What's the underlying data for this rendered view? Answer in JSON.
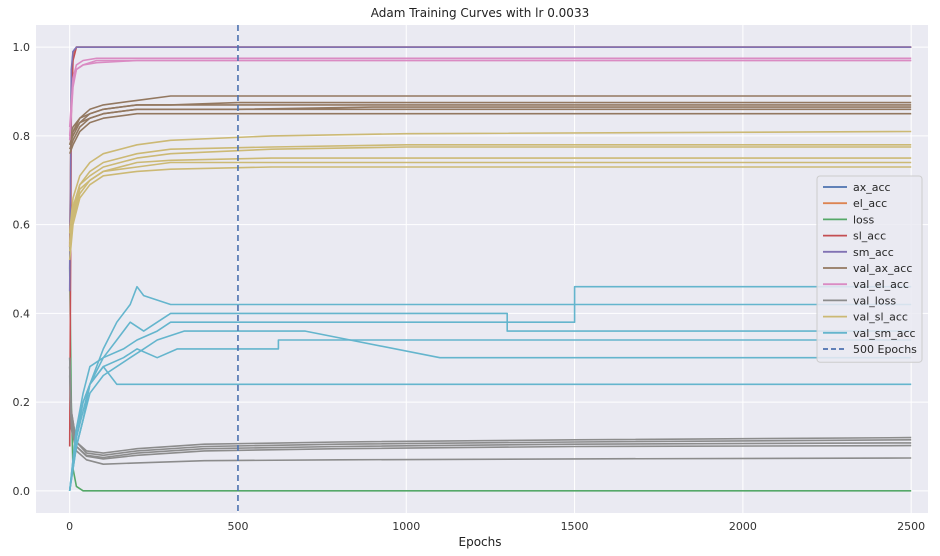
{
  "chart_data": {
    "type": "line",
    "title": "Adam Training Curves with lr 0.0033",
    "xlabel": "Epochs",
    "ylabel": "",
    "xlim": [
      -100,
      2550
    ],
    "ylim": [
      -0.05,
      1.05
    ],
    "xticks": [
      0,
      500,
      1000,
      1500,
      2000,
      2500
    ],
    "yticks": [
      0.0,
      0.2,
      0.4,
      0.6,
      0.8,
      1.0
    ],
    "grid": true,
    "legend_position": "right",
    "background": "#eaeaf2",
    "vline": {
      "x": 500,
      "label": "500 Epochs",
      "color": "#4c72b0"
    },
    "series": [
      {
        "name": "ax_acc",
        "color": "#4c72b0",
        "runs": [
          {
            "x": [
              0,
              5,
              10,
              20,
              2500
            ],
            "y": [
              0.5,
              0.92,
              0.99,
              1.0,
              1.0
            ]
          }
        ]
      },
      {
        "name": "el_acc",
        "color": "#dd8452",
        "runs": [
          {
            "x": [
              0,
              5,
              10,
              20,
              2500
            ],
            "y": [
              0.55,
              0.9,
              0.98,
              1.0,
              1.0
            ]
          }
        ]
      },
      {
        "name": "loss",
        "color": "#55a868",
        "runs": [
          {
            "x": [
              0,
              5,
              10,
              20,
              40,
              2500
            ],
            "y": [
              0.5,
              0.2,
              0.05,
              0.01,
              0.0,
              0.0
            ]
          }
        ]
      },
      {
        "name": "sl_acc",
        "color": "#c44e52",
        "runs": [
          {
            "x": [
              0,
              5,
              10,
              20,
              2500
            ],
            "y": [
              0.1,
              0.85,
              0.97,
              1.0,
              1.0
            ]
          }
        ]
      },
      {
        "name": "sm_acc",
        "color": "#8172b3",
        "runs": [
          {
            "x": [
              0,
              5,
              10,
              20,
              2500
            ],
            "y": [
              0.45,
              0.95,
              0.99,
              1.0,
              1.0
            ]
          }
        ]
      },
      {
        "name": "val_ax_acc",
        "color": "#937860",
        "runs": [
          {
            "x": [
              0,
              10,
              30,
              60,
              100,
              200,
              300,
              500,
              900,
              2500
            ],
            "y": [
              0.78,
              0.8,
              0.83,
              0.84,
              0.85,
              0.86,
              0.86,
              0.86,
              0.86,
              0.86
            ]
          },
          {
            "x": [
              0,
              10,
              30,
              60,
              100,
              200,
              300,
              500,
              900,
              2500
            ],
            "y": [
              0.78,
              0.81,
              0.84,
              0.85,
              0.86,
              0.87,
              0.87,
              0.87,
              0.87,
              0.87
            ]
          },
          {
            "x": [
              0,
              10,
              30,
              60,
              100,
              200,
              300,
              500,
              900,
              2500
            ],
            "y": [
              0.8,
              0.82,
              0.84,
              0.86,
              0.87,
              0.88,
              0.89,
              0.89,
              0.89,
              0.89
            ]
          },
          {
            "x": [
              0,
              10,
              30,
              60,
              100,
              200,
              300,
              500,
              900,
              2500
            ],
            "y": [
              0.77,
              0.79,
              0.82,
              0.84,
              0.85,
              0.86,
              0.86,
              0.86,
              0.865,
              0.865
            ]
          },
          {
            "x": [
              0,
              10,
              30,
              60,
              100,
              200,
              300,
              500,
              900,
              2500
            ],
            "y": [
              0.76,
              0.78,
              0.81,
              0.83,
              0.84,
              0.85,
              0.85,
              0.85,
              0.85,
              0.85
            ]
          },
          {
            "x": [
              0,
              10,
              30,
              60,
              100,
              200,
              300,
              500,
              900,
              2500
            ],
            "y": [
              0.79,
              0.81,
              0.83,
              0.85,
              0.86,
              0.87,
              0.87,
              0.875,
              0.875,
              0.875
            ]
          }
        ]
      },
      {
        "name": "val_el_acc",
        "color": "#da8bc3",
        "runs": [
          {
            "x": [
              0,
              10,
              20,
              40,
              80,
              200,
              2500
            ],
            "y": [
              0.8,
              0.92,
              0.95,
              0.96,
              0.965,
              0.97,
              0.97
            ]
          },
          {
            "x": [
              0,
              10,
              20,
              40,
              80,
              200,
              2500
            ],
            "y": [
              0.82,
              0.93,
              0.96,
              0.97,
              0.975,
              0.975,
              0.975
            ]
          },
          {
            "x": [
              0,
              10,
              20,
              40,
              80,
              200,
              2500
            ],
            "y": [
              0.79,
              0.91,
              0.95,
              0.96,
              0.97,
              0.97,
              0.97
            ]
          }
        ]
      },
      {
        "name": "val_loss",
        "color": "#8c8c8c",
        "runs": [
          {
            "x": [
              0,
              5,
              20,
              50,
              100,
              200,
              400,
              800,
              1500,
              2500
            ],
            "y": [
              0.3,
              0.18,
              0.11,
              0.085,
              0.08,
              0.09,
              0.1,
              0.105,
              0.11,
              0.115
            ]
          },
          {
            "x": [
              0,
              5,
              20,
              50,
              100,
              200,
              400,
              800,
              1500,
              2500
            ],
            "y": [
              0.3,
              0.18,
              0.11,
              0.09,
              0.085,
              0.095,
              0.105,
              0.11,
              0.115,
              0.12
            ]
          },
          {
            "x": [
              0,
              5,
              20,
              50,
              100,
              200,
              400,
              800,
              1500,
              2500
            ],
            "y": [
              0.28,
              0.16,
              0.1,
              0.08,
              0.075,
              0.085,
              0.095,
              0.1,
              0.105,
              0.108
            ]
          },
          {
            "x": [
              0,
              5,
              20,
              50,
              100,
              200,
              400,
              800,
              1500,
              2500
            ],
            "y": [
              0.28,
              0.16,
              0.1,
              0.078,
              0.072,
              0.08,
              0.09,
              0.095,
              0.1,
              0.102
            ]
          },
          {
            "x": [
              0,
              5,
              20,
              50,
              100,
              200,
              400,
              800,
              1500,
              2500
            ],
            "y": [
              0.26,
              0.14,
              0.09,
              0.07,
              0.06,
              0.063,
              0.068,
              0.07,
              0.072,
              0.074
            ]
          }
        ]
      },
      {
        "name": "val_sl_acc",
        "color": "#ccb974",
        "runs": [
          {
            "x": [
              0,
              10,
              30,
              60,
              100,
              200,
              300,
              600,
              1000,
              2500
            ],
            "y": [
              0.55,
              0.62,
              0.68,
              0.7,
              0.72,
              0.73,
              0.74,
              0.74,
              0.74,
              0.74
            ]
          },
          {
            "x": [
              0,
              10,
              30,
              60,
              100,
              200,
              300,
              600,
              1000,
              2500
            ],
            "y": [
              0.55,
              0.63,
              0.69,
              0.71,
              0.73,
              0.75,
              0.76,
              0.77,
              0.775,
              0.775
            ]
          },
          {
            "x": [
              0,
              10,
              30,
              60,
              100,
              200,
              300,
              600,
              1000,
              2500
            ],
            "y": [
              0.58,
              0.66,
              0.71,
              0.74,
              0.76,
              0.78,
              0.79,
              0.8,
              0.805,
              0.81
            ]
          },
          {
            "x": [
              0,
              10,
              30,
              60,
              100,
              200,
              300,
              600,
              1000,
              2500
            ],
            "y": [
              0.52,
              0.6,
              0.66,
              0.69,
              0.71,
              0.72,
              0.725,
              0.73,
              0.73,
              0.73
            ]
          },
          {
            "x": [
              0,
              10,
              30,
              60,
              100,
              200,
              300,
              600,
              1000,
              2500
            ],
            "y": [
              0.54,
              0.61,
              0.67,
              0.7,
              0.72,
              0.74,
              0.745,
              0.75,
              0.75,
              0.75
            ]
          },
          {
            "x": [
              0,
              10,
              30,
              60,
              100,
              200,
              300,
              600,
              1000,
              2500
            ],
            "y": [
              0.56,
              0.64,
              0.69,
              0.72,
              0.74,
              0.76,
              0.77,
              0.775,
              0.78,
              0.78
            ]
          }
        ]
      },
      {
        "name": "val_sm_acc",
        "color": "#64b5cd",
        "runs": [
          {
            "x": [
              0,
              20,
              40,
              60,
              100,
              160,
              200,
              260,
              300,
              1500,
              1500,
              2500
            ],
            "y": [
              0.0,
              0.14,
              0.22,
              0.28,
              0.3,
              0.32,
              0.34,
              0.36,
              0.38,
              0.38,
              0.46,
              0.46
            ]
          },
          {
            "x": [
              0,
              20,
              40,
              60,
              100,
              160,
              200,
              260,
              320,
              620,
              620,
              2500
            ],
            "y": [
              0.0,
              0.12,
              0.18,
              0.24,
              0.28,
              0.3,
              0.32,
              0.3,
              0.32,
              0.32,
              0.34,
              0.34
            ]
          },
          {
            "x": [
              0,
              20,
              40,
              60,
              100,
              140,
              180,
              220,
              260,
              340,
              700,
              1100,
              2500
            ],
            "y": [
              0.0,
              0.1,
              0.16,
              0.22,
              0.26,
              0.28,
              0.3,
              0.32,
              0.34,
              0.36,
              0.36,
              0.3,
              0.3
            ]
          },
          {
            "x": [
              0,
              20,
              40,
              60,
              100,
              140,
              180,
              200,
              220,
              300,
              500,
              2500
            ],
            "y": [
              0.0,
              0.1,
              0.16,
              0.24,
              0.32,
              0.38,
              0.42,
              0.46,
              0.44,
              0.42,
              0.42,
              0.42
            ]
          },
          {
            "x": [
              0,
              20,
              40,
              60,
              100,
              140,
              180,
              220,
              260,
              300,
              1300,
              1300,
              2500
            ],
            "y": [
              0.0,
              0.12,
              0.2,
              0.24,
              0.3,
              0.34,
              0.38,
              0.36,
              0.38,
              0.4,
              0.4,
              0.36,
              0.36
            ]
          },
          {
            "x": [
              0,
              20,
              40,
              60,
              80,
              100,
              140,
              180,
              2500
            ],
            "y": [
              0.0,
              0.14,
              0.2,
              0.24,
              0.26,
              0.28,
              0.24,
              0.24,
              0.24
            ]
          }
        ]
      }
    ]
  }
}
